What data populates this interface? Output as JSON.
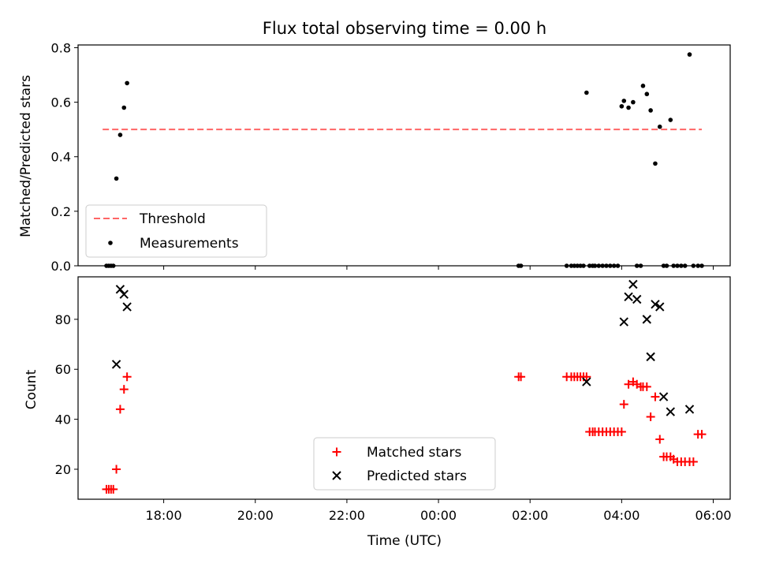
{
  "figure": {
    "title": "Flux total observing time = 0.00 h",
    "xlabel": "Time (UTC)",
    "x_ticks": [
      "18:00",
      "20:00",
      "22:00",
      "00:00",
      "02:00",
      "04:00",
      "06:00"
    ],
    "x_tick_hours": [
      18,
      20,
      22,
      24,
      26,
      28,
      30
    ],
    "x_range_hours": [
      16.13,
      30.37
    ]
  },
  "chart_data": [
    {
      "type": "scatter",
      "title": "Flux total observing time = 0.00 h",
      "ylabel": "Matched/Predicted stars",
      "ylim": [
        0,
        0.81
      ],
      "y_ticks": [
        0.0,
        0.2,
        0.4,
        0.6,
        0.8
      ],
      "y_tick_labels": [
        "0.0",
        "0.2",
        "0.4",
        "0.6",
        "0.8"
      ],
      "legend": {
        "position": "lower-left",
        "entries": [
          "Threshold",
          "Measurements"
        ]
      },
      "threshold": {
        "name": "Threshold",
        "value": 0.5,
        "x_start": "16:40",
        "x_end": "05:45",
        "color": "#ff6666",
        "style": "dashed"
      },
      "series": [
        {
          "name": "Measurements",
          "marker": "dot",
          "color": "#000000",
          "x": [
            "16:45",
            "16:48",
            "16:51",
            "16:54",
            "16:58",
            "17:03",
            "17:08",
            "17:12",
            "01:45",
            "01:48",
            "02:48",
            "02:54",
            "02:58",
            "03:02",
            "03:06",
            "03:10",
            "03:14",
            "03:18",
            "03:22",
            "03:25",
            "03:30",
            "03:35",
            "03:40",
            "03:45",
            "03:50",
            "03:55",
            "04:00",
            "04:03",
            "04:09",
            "04:15",
            "04:20",
            "04:25",
            "04:28",
            "04:33",
            "04:38",
            "04:44",
            "04:50",
            "04:55",
            "04:59",
            "05:04",
            "05:08",
            "05:13",
            "05:18",
            "05:23",
            "05:29",
            "05:34",
            "05:40",
            "05:45"
          ],
          "y": [
            0,
            0,
            0,
            0,
            0.32,
            0.48,
            0.58,
            0.67,
            0,
            0,
            0,
            0,
            0,
            0,
            0,
            0,
            0.635,
            0,
            0,
            0,
            0,
            0,
            0,
            0,
            0,
            0,
            0.585,
            0.605,
            0.58,
            0.6,
            0,
            0,
            0.66,
            0.63,
            0.57,
            0.375,
            0.51,
            0,
            0,
            0.535,
            0,
            0,
            0,
            0,
            0.775,
            0,
            0,
            0
          ]
        }
      ]
    },
    {
      "type": "scatter",
      "ylabel": "Count",
      "xlabel": "Time (UTC)",
      "ylim": [
        8,
        97
      ],
      "y_ticks": [
        20,
        40,
        60,
        80
      ],
      "y_tick_labels": [
        "20",
        "40",
        "60",
        "80"
      ],
      "legend": {
        "position": "lower-center",
        "entries": [
          "Matched stars",
          "Predicted stars"
        ]
      },
      "series": [
        {
          "name": "Matched stars",
          "marker": "plus",
          "color": "#ff0000",
          "x": [
            "16:45",
            "16:48",
            "16:51",
            "16:54",
            "16:58",
            "17:03",
            "17:08",
            "17:12",
            "01:45",
            "01:48",
            "02:48",
            "02:54",
            "02:58",
            "03:02",
            "03:06",
            "03:10",
            "03:14",
            "03:18",
            "03:22",
            "03:25",
            "03:30",
            "03:35",
            "03:40",
            "03:45",
            "03:50",
            "03:55",
            "04:00",
            "04:03",
            "04:09",
            "04:15",
            "04:20",
            "04:25",
            "04:28",
            "04:33",
            "04:38",
            "04:44",
            "04:50",
            "04:55",
            "04:59",
            "05:04",
            "05:08",
            "05:13",
            "05:18",
            "05:23",
            "05:29",
            "05:34",
            "05:40",
            "05:45"
          ],
          "y": [
            12,
            12,
            12,
            12,
            20,
            44,
            52,
            57,
            57,
            57,
            57,
            57,
            57,
            57,
            57,
            57,
            57,
            35,
            35,
            35,
            35,
            35,
            35,
            35,
            35,
            35,
            35,
            46,
            54,
            55,
            54,
            53,
            53,
            53,
            41,
            49,
            32,
            25,
            25,
            25,
            24,
            23,
            23,
            23,
            23,
            23,
            34,
            34
          ]
        },
        {
          "name": "Predicted stars",
          "marker": "x",
          "color": "#000000",
          "x": [
            "16:58",
            "17:03",
            "17:08",
            "17:12",
            "03:14",
            "04:03",
            "04:09",
            "04:15",
            "04:20",
            "04:33",
            "04:38",
            "04:44",
            "04:50",
            "04:55",
            "05:04",
            "05:29"
          ],
          "y": [
            62,
            92,
            90,
            85,
            55,
            79,
            89,
            94,
            88,
            80,
            65,
            86,
            85,
            49,
            43,
            44
          ]
        }
      ]
    }
  ]
}
